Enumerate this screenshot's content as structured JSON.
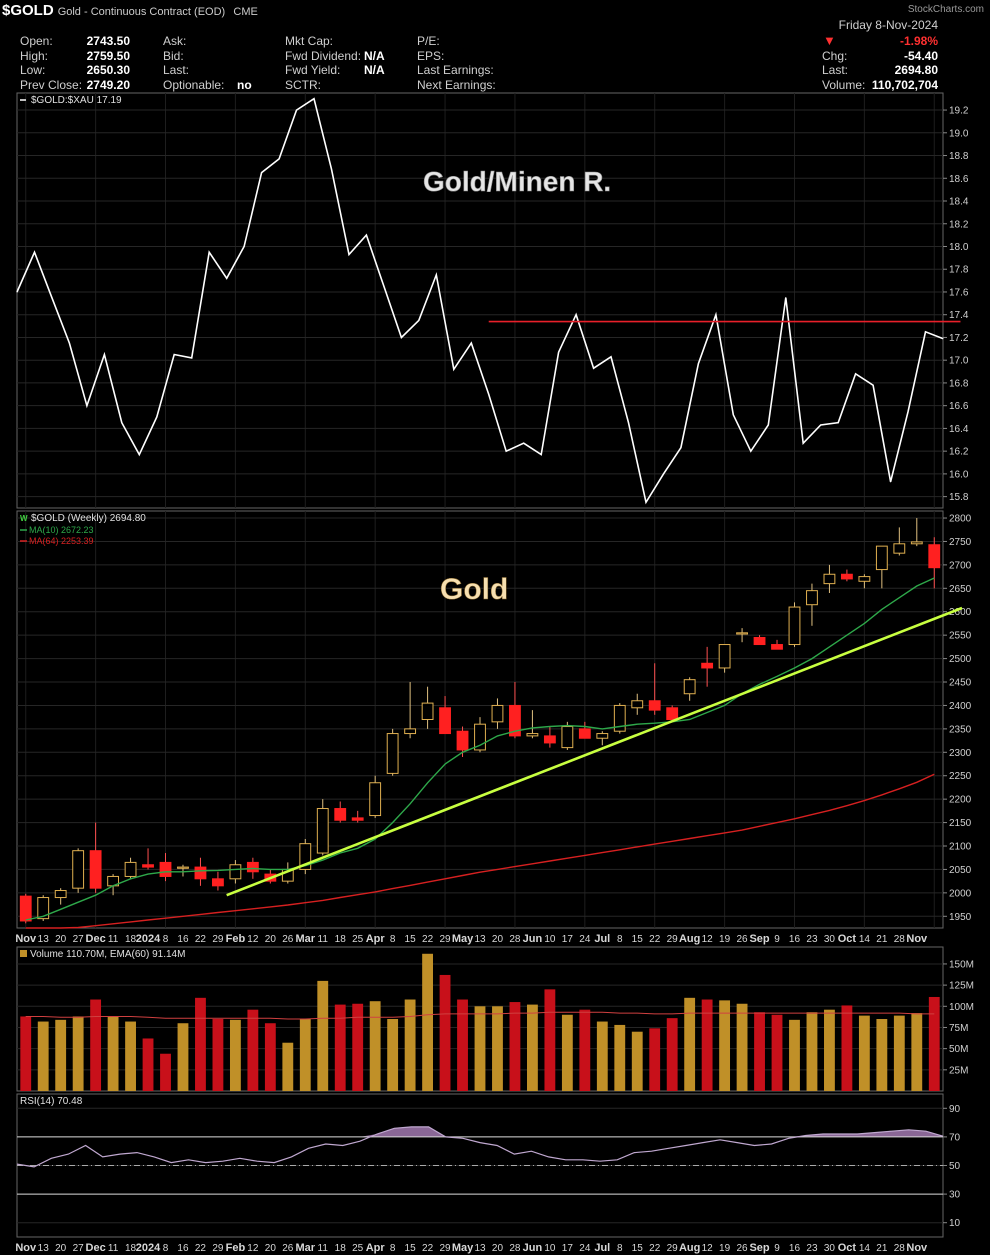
{
  "header": {
    "symbol": "$GOLD",
    "name": "Gold - Continuous Contract (EOD)",
    "exchange": "CME",
    "logo": "StockCharts.com",
    "date": "Friday  8-Nov-2024",
    "left": [
      {
        "label": "Open:",
        "value": "2743.50"
      },
      {
        "label": "High:",
        "value": "2759.50"
      },
      {
        "label": "Low:",
        "value": "2650.30"
      },
      {
        "label": "Prev Close:",
        "value": "2749.20"
      }
    ],
    "mid": [
      {
        "label": "Ask:",
        "value": ""
      },
      {
        "label": "Bid:",
        "value": ""
      },
      {
        "label": "Last:",
        "value": ""
      },
      {
        "label": "Optionable:",
        "value": "no"
      }
    ],
    "mid2": [
      {
        "label": "Mkt Cap:",
        "value": ""
      },
      {
        "label": "Fwd Dividend:",
        "value": "N/A"
      },
      {
        "label": "Fwd Yield:",
        "value": "N/A"
      },
      {
        "label": "SCTR:",
        "value": ""
      }
    ],
    "mid3": [
      "P/E:",
      "EPS:",
      "Last Earnings:",
      "Next Earnings:"
    ],
    "right": {
      "pct": "-1.98%",
      "chg_label": "Chg:",
      "chg": "-54.40",
      "last_label": "Last:",
      "last": "2694.80",
      "vol_label": "Volume:",
      "vol": "110,702,704"
    },
    "colors": {
      "down": "#ff3030",
      "up": "#e8b040"
    }
  },
  "chart_data": [
    {
      "type": "line",
      "panel": "ratio",
      "legend": "$GOLD:$XAU 17.19",
      "annotation": "Gold/Minen R.",
      "ylim": [
        15.7,
        19.35
      ],
      "yticks": [
        "15.8",
        "16.0",
        "16.2",
        "16.4",
        "16.6",
        "16.8",
        "17.0",
        "17.2",
        "17.4",
        "17.6",
        "17.8",
        "18.0",
        "18.2",
        "18.4",
        "18.6",
        "18.8",
        "19.0",
        "19.2"
      ],
      "values": [
        17.6,
        17.95,
        17.55,
        17.15,
        16.6,
        17.05,
        16.45,
        16.17,
        16.5,
        17.05,
        17.02,
        17.95,
        17.72,
        18.0,
        18.65,
        18.77,
        19.2,
        19.3,
        18.68,
        17.93,
        18.1,
        17.65,
        17.2,
        17.35,
        17.75,
        16.92,
        17.15,
        16.7,
        16.2,
        16.27,
        16.17,
        17.07,
        17.4,
        16.93,
        17.03,
        16.45,
        15.75,
        16.0,
        16.23,
        16.97,
        17.4,
        16.52,
        16.2,
        16.43,
        17.55,
        16.27,
        16.43,
        16.45,
        16.88,
        16.78,
        15.93,
        16.55,
        17.25,
        17.19
      ],
      "resistance": {
        "value": 17.34,
        "from_index": 27,
        "to_index": 54,
        "color": "#e8202a"
      },
      "color": "#ffffff"
    },
    {
      "type": "candlestick",
      "panel": "price",
      "legend": [
        "$GOLD (Weekly) 2694.80",
        "MA(10) 2672.23",
        "MA(64) 2253.39"
      ],
      "annotation": "Gold",
      "ylim": [
        1925,
        2815
      ],
      "yticks": [
        "1950",
        "2000",
        "2050",
        "2100",
        "2150",
        "2200",
        "2250",
        "2300",
        "2350",
        "2400",
        "2450",
        "2500",
        "2550",
        "2600",
        "2650",
        "2700",
        "2750",
        "2800"
      ],
      "ohlc": [
        [
          1993,
          1998,
          1935,
          1940
        ],
        [
          1945,
          1995,
          1940,
          1990
        ],
        [
          1990,
          2010,
          1975,
          2005
        ],
        [
          2010,
          2095,
          2000,
          2090
        ],
        [
          2090,
          2150,
          2000,
          2010
        ],
        [
          2015,
          2040,
          1995,
          2035
        ],
        [
          2035,
          2075,
          2030,
          2065
        ],
        [
          2060,
          2095,
          2050,
          2055
        ],
        [
          2065,
          2085,
          2025,
          2035
        ],
        [
          2055,
          2060,
          2035,
          2055
        ],
        [
          2055,
          2075,
          2015,
          2030
        ],
        [
          2030,
          2045,
          2005,
          2015
        ],
        [
          2030,
          2070,
          2020,
          2060
        ],
        [
          2065,
          2075,
          2030,
          2045
        ],
        [
          2040,
          2050,
          2020,
          2025
        ],
        [
          2025,
          2065,
          2020,
          2050
        ],
        [
          2050,
          2115,
          2040,
          2105
        ],
        [
          2085,
          2200,
          2080,
          2180
        ],
        [
          2180,
          2195,
          2150,
          2155
        ],
        [
          2160,
          2175,
          2150,
          2155
        ],
        [
          2165,
          2250,
          2160,
          2235
        ],
        [
          2255,
          2350,
          2250,
          2340
        ],
        [
          2340,
          2450,
          2330,
          2350
        ],
        [
          2370,
          2440,
          2350,
          2405
        ],
        [
          2395,
          2420,
          2340,
          2340
        ],
        [
          2345,
          2355,
          2290,
          2305
        ],
        [
          2305,
          2375,
          2300,
          2360
        ],
        [
          2365,
          2415,
          2350,
          2400
        ],
        [
          2400,
          2450,
          2330,
          2335
        ],
        [
          2335,
          2390,
          2330,
          2340
        ],
        [
          2335,
          2355,
          2310,
          2320
        ],
        [
          2310,
          2365,
          2305,
          2355
        ],
        [
          2350,
          2365,
          2330,
          2330
        ],
        [
          2330,
          2345,
          2315,
          2340
        ],
        [
          2345,
          2405,
          2340,
          2400
        ],
        [
          2395,
          2425,
          2380,
          2410
        ],
        [
          2410,
          2490,
          2380,
          2390
        ],
        [
          2395,
          2400,
          2370,
          2370
        ],
        [
          2425,
          2460,
          2410,
          2455
        ],
        [
          2490,
          2525,
          2440,
          2480
        ],
        [
          2480,
          2530,
          2470,
          2530
        ],
        [
          2555,
          2565,
          2535,
          2555
        ],
        [
          2545,
          2550,
          2530,
          2530
        ],
        [
          2530,
          2540,
          2520,
          2520
        ],
        [
          2530,
          2620,
          2525,
          2610
        ],
        [
          2615,
          2660,
          2570,
          2645
        ],
        [
          2660,
          2700,
          2640,
          2680
        ],
        [
          2680,
          2690,
          2665,
          2670
        ],
        [
          2665,
          2680,
          2650,
          2675
        ],
        [
          2690,
          2740,
          2650,
          2740
        ],
        [
          2725,
          2780,
          2720,
          2745
        ],
        [
          2745,
          2800,
          2740,
          2749
        ],
        [
          2743,
          2759,
          2650,
          2694
        ]
      ],
      "ma10": [
        1942,
        1950,
        1965,
        1980,
        1995,
        2015,
        2030,
        2040,
        2045,
        2045,
        2047,
        2048,
        2050,
        2052,
        2050,
        2050,
        2058,
        2070,
        2085,
        2095,
        2115,
        2150,
        2190,
        2235,
        2275,
        2300,
        2315,
        2335,
        2345,
        2352,
        2355,
        2357,
        2355,
        2350,
        2355,
        2360,
        2362,
        2365,
        2370,
        2385,
        2400,
        2425,
        2445,
        2462,
        2480,
        2500,
        2525,
        2550,
        2575,
        2605,
        2630,
        2655,
        2672
      ],
      "ma64": [
        1915,
        1918,
        1922,
        1926,
        1930,
        1934,
        1938,
        1942,
        1946,
        1950,
        1954,
        1958,
        1962,
        1966,
        1970,
        1974,
        1979,
        1984,
        1990,
        1996,
        2002,
        2009,
        2016,
        2023,
        2030,
        2037,
        2044,
        2050,
        2056,
        2062,
        2068,
        2074,
        2080,
        2086,
        2092,
        2098,
        2104,
        2110,
        2116,
        2122,
        2128,
        2134,
        2142,
        2150,
        2158,
        2167,
        2176,
        2186,
        2197,
        2209,
        2222,
        2236,
        2253
      ],
      "trendline": {
        "from": [
          12,
          1995
        ],
        "to": [
          55,
          2608
        ],
        "color": "#c8ff40"
      },
      "ma10_color": "#2ea84a",
      "ma64_color": "#d62020"
    },
    {
      "type": "bar",
      "panel": "volume",
      "legend": "Volume 110.70M, EMA(60) 91.14M",
      "ylim": [
        0,
        170
      ],
      "yticks": [
        "25M",
        "50M",
        "75M",
        "100M",
        "125M",
        "150M"
      ],
      "values": [
        88,
        82,
        84,
        88,
        108,
        88,
        82,
        62,
        44,
        80,
        110,
        85,
        84,
        96,
        80,
        57,
        85,
        130,
        102,
        103,
        106,
        85,
        108,
        162,
        137,
        108,
        100,
        100,
        105,
        102,
        120,
        90,
        96,
        82,
        78,
        70,
        74,
        86,
        110,
        108,
        107,
        103,
        93,
        90,
        84,
        93,
        96,
        101,
        89,
        85,
        89,
        92,
        111
      ],
      "ema60": [
        88,
        88,
        87,
        87,
        88,
        88,
        88,
        87,
        86,
        86,
        86,
        86,
        86,
        86,
        86,
        85,
        85,
        86,
        86,
        87,
        87,
        87,
        88,
        90,
        91,
        91,
        91,
        91,
        92,
        92,
        93,
        93,
        93,
        93,
        92,
        92,
        91,
        91,
        92,
        92,
        92,
        92,
        92,
        92,
        92,
        92,
        92,
        92,
        92,
        92,
        92,
        91,
        91
      ],
      "up_color": "#c09028",
      "down_color": "#c8101a",
      "ema_color": "#d04040"
    },
    {
      "type": "area",
      "panel": "rsi",
      "legend": "RSI(14) 70.48",
      "ylim": [
        0,
        100
      ],
      "yticks": [
        "10",
        "30",
        "50",
        "70",
        "90"
      ],
      "values": [
        51,
        49,
        55,
        58,
        64,
        56,
        58,
        59,
        56,
        52,
        54,
        52,
        53,
        55,
        53,
        52,
        56,
        62,
        65,
        64,
        67,
        72,
        76,
        77,
        77,
        70,
        69,
        66,
        64,
        58,
        60,
        56,
        54,
        54,
        53,
        54,
        59,
        60,
        62,
        64,
        66,
        68,
        66,
        64,
        65,
        69,
        71,
        72,
        72,
        72,
        73,
        74,
        75,
        74,
        70.48
      ],
      "line_color": "#c0a8d0",
      "fill_color": "#b88ac8",
      "refs": [
        30,
        50,
        70
      ]
    }
  ],
  "x_axis": {
    "labels": [
      "Nov",
      "13",
      "20",
      "27",
      "Dec",
      "11",
      "18",
      "2024",
      "8",
      "16",
      "22",
      "29",
      "Feb",
      "12",
      "20",
      "26",
      "Mar",
      "11",
      "18",
      "25",
      "Apr",
      "8",
      "15",
      "22",
      "29",
      "May",
      "13",
      "20",
      "28",
      "Jun",
      "10",
      "17",
      "24",
      "Jul",
      "8",
      "15",
      "22",
      "29",
      "Aug",
      "12",
      "19",
      "26",
      "Sep",
      "9",
      "16",
      "23",
      "30",
      "Oct",
      "14",
      "21",
      "28",
      "Nov"
    ],
    "bold": [
      "Nov",
      "Dec",
      "2024",
      "Feb",
      "Mar",
      "Apr",
      "May",
      "Jun",
      "Jul",
      "Aug",
      "Sep",
      "Oct"
    ]
  }
}
